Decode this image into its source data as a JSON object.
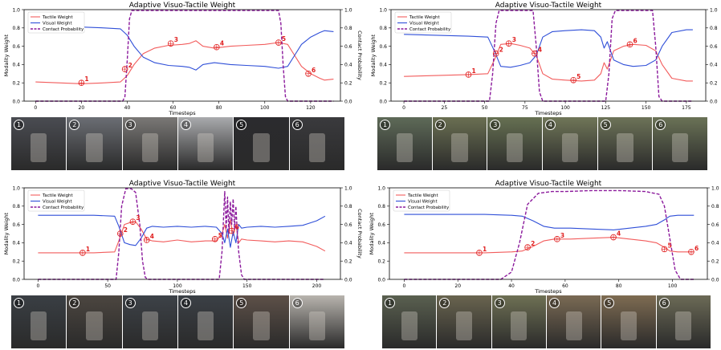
{
  "colors": {
    "tactile": "#f25c5c",
    "visual": "#2f4fd8",
    "contact": "#8b1a9c"
  },
  "chart_data": [
    {
      "type": "line",
      "title": "Adaptive Visuo-Tactile Weight",
      "xlabel": "Timesteps",
      "ylabel": "Modality Weight",
      "y2label": "Contact Probability",
      "xlim": [
        -5,
        133
      ],
      "ylim": [
        0,
        1
      ],
      "y2lim": [
        0,
        1
      ],
      "xticks": [
        0,
        20,
        40,
        60,
        80,
        100,
        120
      ],
      "yticks": [
        0.0,
        0.2,
        0.4,
        0.6,
        0.8,
        1.0
      ],
      "legend_position": "top-left",
      "series": [
        {
          "name": "Tactile Weight",
          "axis": "left",
          "style": "solid",
          "color": "#f25c5c",
          "x": [
            0,
            10,
            20,
            30,
            37,
            40,
            43,
            47,
            52,
            58,
            64,
            67,
            70,
            73,
            78,
            85,
            92,
            100,
            106,
            110,
            113,
            116,
            120,
            124,
            126,
            130
          ],
          "y": [
            0.21,
            0.2,
            0.19,
            0.2,
            0.21,
            0.28,
            0.4,
            0.52,
            0.58,
            0.61,
            0.62,
            0.63,
            0.66,
            0.6,
            0.58,
            0.6,
            0.61,
            0.62,
            0.64,
            0.62,
            0.5,
            0.38,
            0.3,
            0.25,
            0.23,
            0.24
          ]
        },
        {
          "name": "Visual Weight",
          "axis": "left",
          "style": "solid",
          "color": "#2f4fd8",
          "x": [
            0,
            10,
            20,
            30,
            37,
            40,
            43,
            47,
            52,
            58,
            64,
            67,
            70,
            73,
            78,
            85,
            92,
            100,
            106,
            110,
            113,
            116,
            120,
            124,
            126,
            130
          ],
          "y": [
            0.79,
            0.8,
            0.81,
            0.8,
            0.79,
            0.72,
            0.6,
            0.48,
            0.42,
            0.39,
            0.38,
            0.37,
            0.34,
            0.4,
            0.42,
            0.4,
            0.39,
            0.38,
            0.36,
            0.38,
            0.5,
            0.62,
            0.7,
            0.75,
            0.77,
            0.76
          ]
        },
        {
          "name": "Contact Probability",
          "axis": "right",
          "style": "dashed",
          "color": "#8b1a9c",
          "x": [
            0,
            38,
            39,
            40,
            41,
            42,
            60,
            80,
            100,
            106,
            107,
            108,
            109,
            110,
            130
          ],
          "y": [
            0.0,
            0.0,
            0.05,
            0.45,
            0.9,
            0.99,
            0.99,
            0.99,
            0.99,
            0.99,
            0.85,
            0.4,
            0.05,
            0.0,
            0.0
          ]
        }
      ],
      "annotations": [
        {
          "label": "1",
          "x": 20,
          "y": 0.2
        },
        {
          "label": "2",
          "x": 39,
          "y": 0.35
        },
        {
          "label": "3",
          "x": 59,
          "y": 0.63
        },
        {
          "label": "4",
          "x": 79,
          "y": 0.59
        },
        {
          "label": "5",
          "x": 106,
          "y": 0.64
        },
        {
          "label": "6",
          "x": 119,
          "y": 0.3
        }
      ]
    },
    {
      "type": "line",
      "title": "Adaptive Visuo-Tactile Weight",
      "xlabel": "Timesteps",
      "ylabel": "Modality Weight",
      "y2label": "Contact Probability",
      "xlim": [
        -8,
        187
      ],
      "ylim": [
        0,
        1
      ],
      "y2lim": [
        0,
        1
      ],
      "xticks": [
        0,
        25,
        50,
        75,
        100,
        125,
        150,
        175
      ],
      "yticks": [
        0.0,
        0.2,
        0.4,
        0.6,
        0.8,
        1.0
      ],
      "legend_position": "top-left",
      "series": [
        {
          "name": "Tactile Weight",
          "axis": "left",
          "style": "solid",
          "color": "#f25c5c",
          "x": [
            0,
            20,
            40,
            52,
            56,
            60,
            66,
            72,
            78,
            82,
            86,
            92,
            100,
            110,
            118,
            122,
            124,
            126,
            130,
            136,
            142,
            150,
            156,
            160,
            166,
            175,
            179
          ],
          "y": [
            0.27,
            0.28,
            0.29,
            0.3,
            0.45,
            0.62,
            0.63,
            0.61,
            0.58,
            0.5,
            0.3,
            0.24,
            0.23,
            0.22,
            0.23,
            0.3,
            0.42,
            0.35,
            0.55,
            0.6,
            0.62,
            0.61,
            0.55,
            0.4,
            0.25,
            0.22,
            0.22
          ]
        },
        {
          "name": "Visual Weight",
          "axis": "left",
          "style": "solid",
          "color": "#2f4fd8",
          "x": [
            0,
            20,
            40,
            52,
            56,
            60,
            66,
            72,
            78,
            82,
            86,
            92,
            100,
            110,
            118,
            122,
            124,
            126,
            130,
            136,
            142,
            150,
            156,
            160,
            166,
            175,
            179
          ],
          "y": [
            0.73,
            0.72,
            0.71,
            0.7,
            0.55,
            0.38,
            0.37,
            0.39,
            0.42,
            0.5,
            0.7,
            0.76,
            0.77,
            0.78,
            0.77,
            0.7,
            0.58,
            0.65,
            0.45,
            0.4,
            0.38,
            0.39,
            0.45,
            0.6,
            0.75,
            0.78,
            0.78
          ]
        },
        {
          "name": "Contact Probability",
          "axis": "right",
          "style": "dashed",
          "color": "#8b1a9c",
          "x": [
            0,
            53,
            55,
            57,
            59,
            62,
            80,
            82,
            84,
            86,
            125,
            127,
            129,
            131,
            154,
            156,
            158,
            160,
            179
          ],
          "y": [
            0.0,
            0.0,
            0.3,
            0.85,
            0.99,
            0.99,
            0.99,
            0.6,
            0.1,
            0.0,
            0.0,
            0.3,
            0.9,
            0.99,
            0.99,
            0.6,
            0.05,
            0.0,
            0.0
          ]
        }
      ],
      "annotations": [
        {
          "label": "1",
          "x": 40,
          "y": 0.29
        },
        {
          "label": "2",
          "x": 57,
          "y": 0.52
        },
        {
          "label": "3",
          "x": 65,
          "y": 0.63
        },
        {
          "label": "4",
          "x": 81,
          "y": 0.52
        },
        {
          "label": "5",
          "x": 105,
          "y": 0.23
        },
        {
          "label": "6",
          "x": 140,
          "y": 0.62
        }
      ]
    },
    {
      "type": "line",
      "title": "Adaptive Visuo-Tactile Weight",
      "xlabel": "Timesteps",
      "ylabel": "Modality Weight",
      "y2label": "Contact Probability",
      "xlim": [
        -10,
        217
      ],
      "ylim": [
        0,
        1
      ],
      "y2lim": [
        0,
        1
      ],
      "xticks": [
        0,
        50,
        100,
        150,
        200
      ],
      "yticks": [
        0.0,
        0.2,
        0.4,
        0.6,
        0.8,
        1.0
      ],
      "legend_position": "top-left",
      "series": [
        {
          "name": "Tactile Weight",
          "axis": "left",
          "style": "solid",
          "color": "#f25c5c",
          "x": [
            0,
            20,
            40,
            55,
            58,
            62,
            66,
            70,
            74,
            78,
            82,
            90,
            100,
            110,
            120,
            128,
            132,
            134,
            136,
            138,
            140,
            142,
            144,
            146,
            150,
            160,
            170,
            180,
            190,
            200,
            206
          ],
          "y": [
            0.29,
            0.29,
            0.29,
            0.3,
            0.42,
            0.6,
            0.62,
            0.63,
            0.55,
            0.44,
            0.42,
            0.41,
            0.43,
            0.41,
            0.42,
            0.42,
            0.5,
            0.6,
            0.45,
            0.65,
            0.48,
            0.6,
            0.4,
            0.44,
            0.43,
            0.42,
            0.41,
            0.42,
            0.41,
            0.36,
            0.31
          ]
        },
        {
          "name": "Visual Weight",
          "axis": "left",
          "style": "solid",
          "color": "#2f4fd8",
          "x": [
            0,
            20,
            40,
            55,
            58,
            62,
            66,
            70,
            74,
            78,
            82,
            90,
            100,
            110,
            120,
            128,
            132,
            134,
            136,
            138,
            140,
            142,
            144,
            146,
            150,
            160,
            170,
            180,
            190,
            200,
            206
          ],
          "y": [
            0.7,
            0.7,
            0.7,
            0.69,
            0.58,
            0.4,
            0.38,
            0.37,
            0.45,
            0.56,
            0.58,
            0.57,
            0.58,
            0.57,
            0.58,
            0.57,
            0.5,
            0.4,
            0.55,
            0.35,
            0.52,
            0.4,
            0.6,
            0.56,
            0.57,
            0.58,
            0.57,
            0.58,
            0.59,
            0.64,
            0.69
          ]
        },
        {
          "name": "Contact Probability",
          "axis": "right",
          "style": "dashed",
          "color": "#8b1a9c",
          "x": [
            0,
            56,
            58,
            60,
            63,
            67,
            70,
            73,
            75,
            77,
            79,
            130,
            132,
            134,
            135,
            136,
            137,
            138,
            139,
            140,
            141,
            142,
            143,
            144,
            146,
            148,
            206
          ],
          "y": [
            0.0,
            0.0,
            0.3,
            0.8,
            0.99,
            0.99,
            0.95,
            0.6,
            0.2,
            0.02,
            0.0,
            0.0,
            0.3,
            0.96,
            0.55,
            0.9,
            0.5,
            0.85,
            0.6,
            0.88,
            0.55,
            0.8,
            0.5,
            0.3,
            0.05,
            0.0,
            0.0
          ]
        }
      ],
      "annotations": [
        {
          "label": "1",
          "x": 32,
          "y": 0.29
        },
        {
          "label": "2",
          "x": 59,
          "y": 0.5
        },
        {
          "label": "3",
          "x": 68,
          "y": 0.63
        },
        {
          "label": "4",
          "x": 78,
          "y": 0.43
        },
        {
          "label": "5",
          "x": 127,
          "y": 0.44
        },
        {
          "label": "6",
          "x": 139,
          "y": 0.53
        }
      ]
    },
    {
      "type": "line",
      "title": "Adaptive Visuo-Tactile Weight",
      "xlabel": "Timesteps",
      "ylabel": "Modality Weight",
      "y2label": "Contact Probability",
      "xlim": [
        -5.5,
        113
      ],
      "ylim": [
        0,
        1
      ],
      "y2lim": [
        0,
        1
      ],
      "xticks": [
        0,
        20,
        40,
        60,
        80,
        100
      ],
      "yticks": [
        0.0,
        0.2,
        0.4,
        0.6,
        0.8,
        1.0
      ],
      "legend_position": "top-left",
      "series": [
        {
          "name": "Tactile Weight",
          "axis": "left",
          "style": "solid",
          "color": "#f25c5c",
          "x": [
            0,
            10,
            20,
            30,
            40,
            44,
            48,
            52,
            56,
            62,
            70,
            78,
            84,
            90,
            94,
            97,
            99,
            102,
            105,
            108
          ],
          "y": [
            0.29,
            0.29,
            0.29,
            0.29,
            0.3,
            0.31,
            0.36,
            0.42,
            0.44,
            0.44,
            0.45,
            0.46,
            0.44,
            0.42,
            0.4,
            0.35,
            0.31,
            0.3,
            0.3,
            0.3
          ]
        },
        {
          "name": "Visual Weight",
          "axis": "left",
          "style": "solid",
          "color": "#2f4fd8",
          "x": [
            0,
            10,
            20,
            30,
            40,
            44,
            48,
            52,
            56,
            62,
            70,
            78,
            84,
            90,
            94,
            97,
            99,
            102,
            105,
            108
          ],
          "y": [
            0.71,
            0.71,
            0.71,
            0.71,
            0.7,
            0.69,
            0.64,
            0.58,
            0.56,
            0.56,
            0.55,
            0.54,
            0.56,
            0.58,
            0.6,
            0.65,
            0.69,
            0.7,
            0.7,
            0.7
          ]
        },
        {
          "name": "Contact Probability",
          "axis": "right",
          "style": "dashed",
          "color": "#8b1a9c",
          "x": [
            0,
            36,
            40,
            43,
            46,
            50,
            55,
            60,
            70,
            80,
            90,
            95,
            97,
            99,
            101,
            103,
            108
          ],
          "y": [
            0.0,
            0.0,
            0.08,
            0.4,
            0.82,
            0.94,
            0.96,
            0.96,
            0.97,
            0.97,
            0.96,
            0.93,
            0.8,
            0.45,
            0.1,
            0.0,
            0.0
          ]
        }
      ],
      "annotations": [
        {
          "label": "1",
          "x": 28,
          "y": 0.29
        },
        {
          "label": "2",
          "x": 46,
          "y": 0.35
        },
        {
          "label": "3",
          "x": 57,
          "y": 0.44
        },
        {
          "label": "4",
          "x": 78,
          "y": 0.46
        },
        {
          "label": "5",
          "x": 97,
          "y": 0.33
        },
        {
          "label": "6",
          "x": 107,
          "y": 0.3
        }
      ]
    }
  ],
  "photo_strips": [
    {
      "scene": "lightbulb-grasp",
      "badges": [
        "1",
        "2",
        "3",
        "4",
        "5",
        "6"
      ],
      "tones": [
        "#4a4c52",
        "#6b6e74",
        "#7a7876",
        "#a9aaad",
        "#2b2b2e",
        "#3a3a3d"
      ]
    },
    {
      "scene": "cucumber-cutting",
      "badges": [
        "1",
        "2",
        "3",
        "4",
        "5",
        "6"
      ],
      "tones": [
        "#5e6a58",
        "#6a6f52",
        "#667052",
        "#707658",
        "#6d7358",
        "#6a7256"
      ]
    },
    {
      "scene": "plug-insertion",
      "badges": [
        "1",
        "2",
        "3",
        "4",
        "5",
        "6"
      ],
      "tones": [
        "#3a3f44",
        "#4c4640",
        "#3d4248",
        "#3b4046",
        "#5d5048",
        "#b8b4ae"
      ]
    },
    {
      "scene": "cucumber-peeling",
      "badges": [
        "1",
        "2",
        "3",
        "4",
        "5",
        "6"
      ],
      "tones": [
        "#5a6050",
        "#69644f",
        "#6e7054",
        "#7a6a54",
        "#7e6c52",
        "#6c6a56"
      ]
    }
  ]
}
